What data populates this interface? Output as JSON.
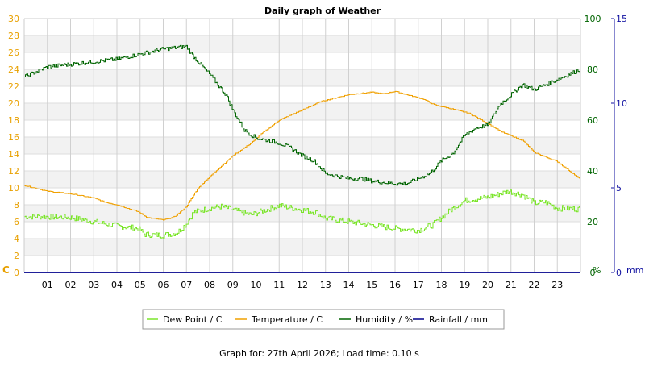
{
  "chart_data": {
    "type": "line",
    "title": "Daily graph of Weather",
    "footer": "Graph for: 27th April 2026; Load time: 0.10 s",
    "x_ticks": [
      "01",
      "02",
      "03",
      "04",
      "05",
      "06",
      "07",
      "08",
      "09",
      "10",
      "11",
      "12",
      "13",
      "14",
      "15",
      "16",
      "17",
      "18",
      "19",
      "20",
      "21",
      "22",
      "23"
    ],
    "x_range_hours": [
      0,
      24
    ],
    "grid": true,
    "legend_position": "bottom",
    "axes": {
      "left": {
        "unit": "C",
        "range": [
          0,
          30
        ],
        "ticks": [
          0,
          2,
          4,
          6,
          8,
          10,
          12,
          14,
          16,
          18,
          20,
          22,
          24,
          26,
          28,
          30
        ],
        "color": "#e8a000"
      },
      "right1": {
        "unit": "%",
        "range": [
          0,
          100
        ],
        "ticks": [
          0,
          20,
          40,
          60,
          80,
          100
        ],
        "color": "#006400"
      },
      "right2": {
        "unit": "mm",
        "range": [
          0,
          15
        ],
        "ticks": [
          0,
          5,
          10,
          15
        ],
        "color": "#1010a0"
      }
    },
    "series": [
      {
        "name": "Dew Point / C",
        "axis": "left",
        "color": "#7be52a",
        "noise": 0.35,
        "points": [
          [
            0,
            6.6
          ],
          [
            1,
            6.6
          ],
          [
            2,
            6.5
          ],
          [
            3,
            6.0
          ],
          [
            4,
            5.5
          ],
          [
            4.9,
            5.2
          ],
          [
            5.2,
            4.5
          ],
          [
            6,
            4.4
          ],
          [
            6.6,
            4.7
          ],
          [
            7,
            5.8
          ],
          [
            7.3,
            7.1
          ],
          [
            8,
            7.6
          ],
          [
            8.5,
            7.8
          ],
          [
            9,
            7.4
          ],
          [
            9.8,
            6.8
          ],
          [
            10.2,
            7.2
          ],
          [
            11,
            7.9
          ],
          [
            12,
            7.4
          ],
          [
            12.6,
            7.1
          ],
          [
            13,
            6.4
          ],
          [
            14,
            6.0
          ],
          [
            15,
            5.6
          ],
          [
            16,
            5.2
          ],
          [
            17,
            5.0
          ],
          [
            17.6,
            5.6
          ],
          [
            18,
            6.5
          ],
          [
            18.5,
            7.6
          ],
          [
            19,
            8.5
          ],
          [
            20,
            8.9
          ],
          [
            20.9,
            9.6
          ],
          [
            21.5,
            9.2
          ],
          [
            22,
            8.2
          ],
          [
            22.5,
            8.3
          ],
          [
            23,
            7.6
          ],
          [
            24,
            7.5
          ]
        ]
      },
      {
        "name": "Temperature / C",
        "axis": "left",
        "color": "#f0a000",
        "noise": 0.05,
        "points": [
          [
            0,
            10.3
          ],
          [
            1,
            9.6
          ],
          [
            2,
            9.3
          ],
          [
            3,
            8.8
          ],
          [
            3.5,
            8.3
          ],
          [
            4,
            8.0
          ],
          [
            4.9,
            7.2
          ],
          [
            5.3,
            6.5
          ],
          [
            6,
            6.2
          ],
          [
            6.5,
            6.6
          ],
          [
            7,
            7.8
          ],
          [
            7.5,
            10.0
          ],
          [
            8,
            11.3
          ],
          [
            9,
            13.8
          ],
          [
            9.8,
            15.3
          ],
          [
            10.2,
            16.3
          ],
          [
            11,
            18.0
          ],
          [
            12,
            19.2
          ],
          [
            12.8,
            20.2
          ],
          [
            13.4,
            20.6
          ],
          [
            14,
            21.0
          ],
          [
            15,
            21.3
          ],
          [
            15.5,
            21.1
          ],
          [
            16,
            21.4
          ],
          [
            16.5,
            21.0
          ],
          [
            17.2,
            20.5
          ],
          [
            17.7,
            19.8
          ],
          [
            18.5,
            19.3
          ],
          [
            19.2,
            18.8
          ],
          [
            20,
            17.6
          ],
          [
            20.6,
            16.6
          ],
          [
            21.5,
            15.6
          ],
          [
            22,
            14.2
          ],
          [
            23,
            13.1
          ],
          [
            24,
            11.0
          ]
        ]
      },
      {
        "name": "Humidity / %",
        "axis": "right1",
        "color": "#006400",
        "noise": 0.8,
        "points": [
          [
            0,
            77
          ],
          [
            1,
            81
          ],
          [
            2,
            82
          ],
          [
            3,
            83
          ],
          [
            4,
            84
          ],
          [
            5,
            86
          ],
          [
            6,
            88
          ],
          [
            7,
            89
          ],
          [
            7.3,
            85
          ],
          [
            8,
            78
          ],
          [
            8.7,
            70
          ],
          [
            9,
            64
          ],
          [
            9.5,
            56
          ],
          [
            10,
            53
          ],
          [
            10.5,
            52
          ],
          [
            11,
            51
          ],
          [
            11.5,
            49
          ],
          [
            12,
            46
          ],
          [
            12.5,
            44
          ],
          [
            13,
            39
          ],
          [
            13.5,
            38
          ],
          [
            14,
            37
          ],
          [
            14.5,
            37
          ],
          [
            15,
            36
          ],
          [
            16,
            35
          ],
          [
            16.5,
            35
          ],
          [
            17,
            37
          ],
          [
            17.5,
            39
          ],
          [
            18,
            44
          ],
          [
            18.5,
            47
          ],
          [
            19,
            54
          ],
          [
            19.5,
            57
          ],
          [
            20,
            58
          ],
          [
            20.5,
            66
          ],
          [
            21,
            70
          ],
          [
            21.5,
            74
          ],
          [
            22,
            72
          ],
          [
            22.5,
            74
          ],
          [
            23,
            76
          ],
          [
            24,
            80
          ]
        ]
      },
      {
        "name": "Rainfall / mm",
        "axis": "right2",
        "color": "#00008b",
        "noise": 0,
        "points": [
          [
            0,
            0
          ],
          [
            24,
            0
          ]
        ]
      }
    ]
  }
}
